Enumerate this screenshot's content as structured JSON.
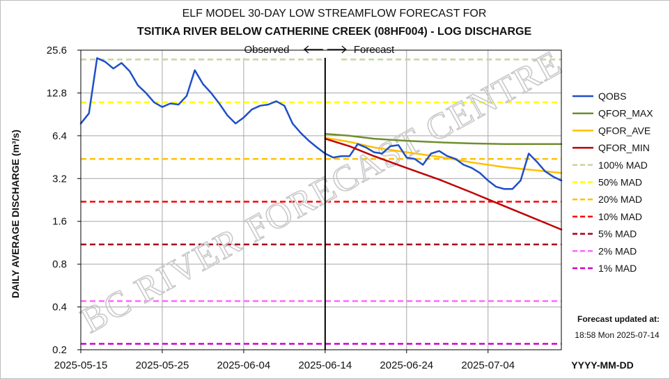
{
  "chart_data": {
    "type": "line",
    "title": "ELF MODEL 30-DAY LOW STREAMFLOW FORECAST FOR",
    "subtitle": "TSITIKA RIVER BELOW CATHERINE CREEK (08HF004) - LOG DISCHARGE",
    "ylabel": "DAILY AVERAGE DISCHARGE (m³/s)",
    "xlabel": "YYYY-MM-DD",
    "y_scale": "log2",
    "ylim": [
      0.2,
      25.6
    ],
    "y_ticks": [
      "0.2",
      "0.4",
      "0.8",
      "1.6",
      "3.2",
      "6.4",
      "12.8",
      "25.6"
    ],
    "y_tick_values": [
      0.2,
      0.4,
      0.8,
      1.6,
      3.2,
      6.4,
      12.8,
      25.6
    ],
    "xlim": [
      "2025-05-15",
      "2025-07-13"
    ],
    "x_ticks": [
      "2025-05-15",
      "2025-05-25",
      "2025-06-04",
      "2025-06-14",
      "2025-06-24",
      "2025-07-04"
    ],
    "grid": true,
    "legend_position": "right",
    "annotations": {
      "observed": "Observed",
      "forecast": "Forecast",
      "divider_date": "2025-06-14",
      "updated_label": "Forecast updated at:",
      "updated_time": "18:58 Mon 2025-07-14"
    },
    "watermark": "BC RIVER FORECAST CENTRE",
    "series": [
      {
        "name": "QOBS",
        "color": "#1f4fc6",
        "style": "solid",
        "width": 2.5,
        "x": [
          "2025-05-15",
          "2025-05-16",
          "2025-05-17",
          "2025-05-18",
          "2025-05-19",
          "2025-05-20",
          "2025-05-21",
          "2025-05-22",
          "2025-05-23",
          "2025-05-24",
          "2025-05-25",
          "2025-05-26",
          "2025-05-27",
          "2025-05-28",
          "2025-05-29",
          "2025-05-30",
          "2025-05-31",
          "2025-06-01",
          "2025-06-02",
          "2025-06-03",
          "2025-06-04",
          "2025-06-05",
          "2025-06-06",
          "2025-06-07",
          "2025-06-08",
          "2025-06-09",
          "2025-06-10",
          "2025-06-11",
          "2025-06-12",
          "2025-06-13",
          "2025-06-14",
          "2025-06-15",
          "2025-06-16",
          "2025-06-17",
          "2025-06-18",
          "2025-06-19",
          "2025-06-20",
          "2025-06-21",
          "2025-06-22",
          "2025-06-23",
          "2025-06-24",
          "2025-06-25",
          "2025-06-26",
          "2025-06-27",
          "2025-06-28",
          "2025-06-29",
          "2025-06-30",
          "2025-07-01",
          "2025-07-02",
          "2025-07-03",
          "2025-07-04",
          "2025-07-05",
          "2025-07-06",
          "2025-07-07",
          "2025-07-08",
          "2025-07-09",
          "2025-07-10",
          "2025-07-11",
          "2025-07-12",
          "2025-07-13"
        ],
        "values": [
          7.8,
          9.2,
          22.5,
          21.2,
          19.0,
          20.8,
          18.2,
          14.5,
          12.8,
          11.0,
          10.2,
          10.8,
          10.6,
          12.2,
          18.5,
          14.8,
          12.8,
          10.8,
          8.9,
          7.8,
          8.6,
          9.8,
          10.4,
          10.6,
          11.2,
          10.4,
          7.8,
          6.7,
          5.9,
          5.3,
          4.8,
          4.5,
          4.6,
          4.6,
          5.6,
          5.3,
          4.9,
          4.8,
          5.4,
          5.5,
          4.5,
          4.4,
          4.0,
          4.8,
          5.0,
          4.6,
          4.4,
          4.0,
          3.8,
          3.5,
          3.1,
          2.8,
          2.7,
          2.7,
          3.1,
          4.8,
          4.2,
          3.6,
          3.3,
          3.1
        ]
      },
      {
        "name": "QFOR_MAX",
        "color": "#6e8f2d",
        "style": "solid",
        "width": 2.5,
        "x": [
          "2025-06-14",
          "2025-06-17",
          "2025-06-20",
          "2025-06-24",
          "2025-06-28",
          "2025-07-02",
          "2025-07-06",
          "2025-07-10",
          "2025-07-13"
        ],
        "values": [
          6.6,
          6.4,
          6.1,
          5.9,
          5.75,
          5.65,
          5.6,
          5.6,
          5.6
        ]
      },
      {
        "name": "QFOR_AVE",
        "color": "#ffc000",
        "style": "solid",
        "width": 2.5,
        "x": [
          "2025-06-14",
          "2025-06-17",
          "2025-06-20",
          "2025-06-24",
          "2025-06-28",
          "2025-07-02",
          "2025-07-06",
          "2025-07-10",
          "2025-07-13"
        ],
        "values": [
          6.2,
          5.8,
          5.3,
          4.9,
          4.55,
          4.15,
          3.85,
          3.65,
          3.5
        ]
      },
      {
        "name": "QFOR_MIN",
        "color": "#c00000",
        "style": "solid",
        "width": 2.5,
        "x": [
          "2025-06-14",
          "2025-06-17",
          "2025-06-20",
          "2025-06-24",
          "2025-06-28",
          "2025-07-02",
          "2025-07-06",
          "2025-07-10",
          "2025-07-13"
        ],
        "values": [
          6.1,
          5.4,
          4.6,
          3.8,
          3.15,
          2.55,
          2.05,
          1.65,
          1.4
        ]
      },
      {
        "name": "100% MAD",
        "color": "#c4d79b",
        "style": "dashed",
        "width": 2.5,
        "constant": 22.0,
        "segments": [
          [
            "2025-05-15",
            "2025-06-14"
          ],
          [
            "2025-06-16",
            "2025-07-13"
          ]
        ]
      },
      {
        "name": "50% MAD",
        "color": "#ffff00",
        "style": "dashed",
        "width": 2.5,
        "constant": 11.0
      },
      {
        "name": "20% MAD",
        "color": "#ffc000",
        "style": "dashed",
        "width": 2.5,
        "constant": 4.4
      },
      {
        "name": "10% MAD",
        "color": "#ff0000",
        "style": "dashed",
        "width": 2.5,
        "constant": 2.2
      },
      {
        "name": "5% MAD",
        "color": "#a50021",
        "style": "dashed",
        "width": 2.5,
        "constant": 1.1
      },
      {
        "name": "2% MAD",
        "color": "#ff66ff",
        "style": "dashed",
        "width": 2.5,
        "constant": 0.44
      },
      {
        "name": "1% MAD",
        "color": "#cc00cc",
        "style": "dashed",
        "width": 2.5,
        "constant": 0.22
      }
    ]
  }
}
